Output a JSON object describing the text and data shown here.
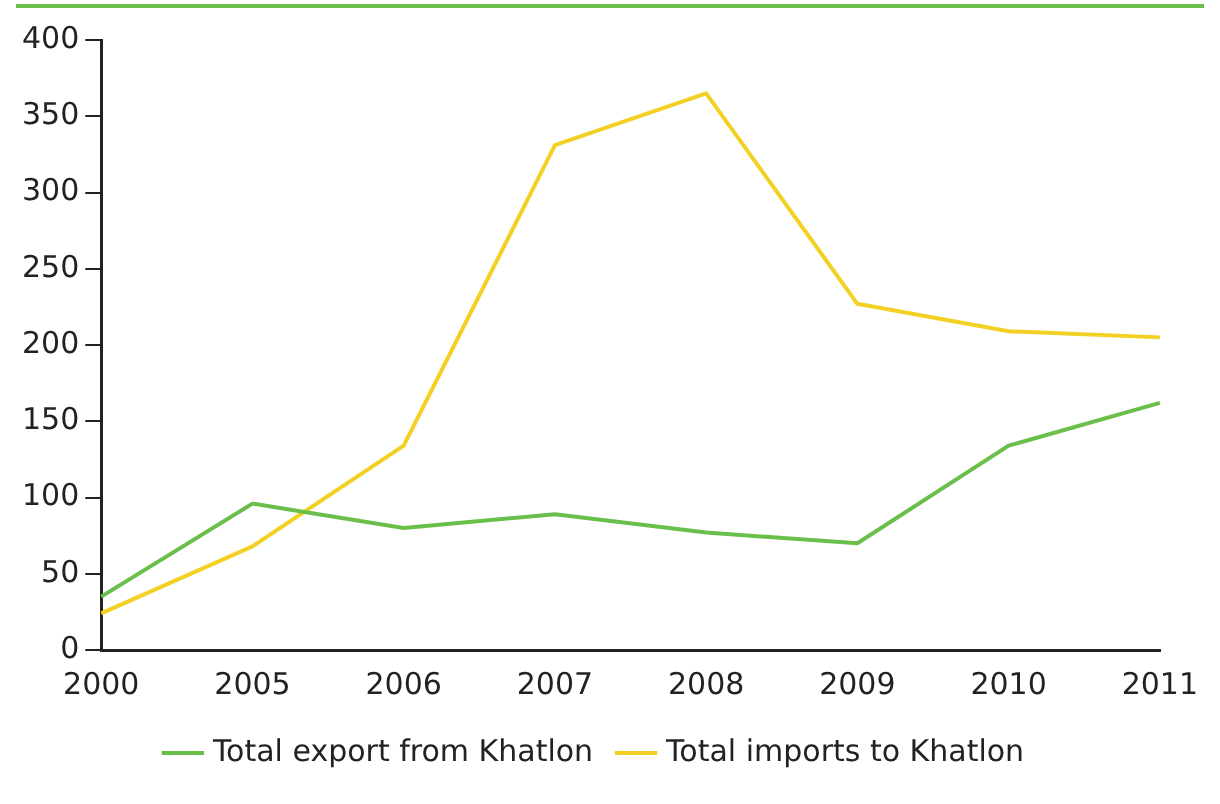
{
  "chart_data": {
    "type": "line",
    "categories": [
      "2000",
      "2005",
      "2006",
      "2007",
      "2008",
      "2009",
      "2010",
      "2011"
    ],
    "series": [
      {
        "name": "Total export from Khatlon",
        "color": "#6abf4b",
        "values": [
          35,
          96,
          80,
          89,
          77,
          70,
          134,
          162
        ]
      },
      {
        "name": "Total imports to Khatlon",
        "color": "#f2d024",
        "values": [
          24,
          68,
          134,
          331,
          365,
          227,
          209,
          205
        ]
      }
    ],
    "ylim": [
      0,
      400
    ],
    "yticks": [
      0,
      50,
      100,
      150,
      200,
      250,
      300,
      350,
      400
    ],
    "grid": false,
    "legend": "bottom",
    "marker": "none",
    "line_style": "solid"
  }
}
